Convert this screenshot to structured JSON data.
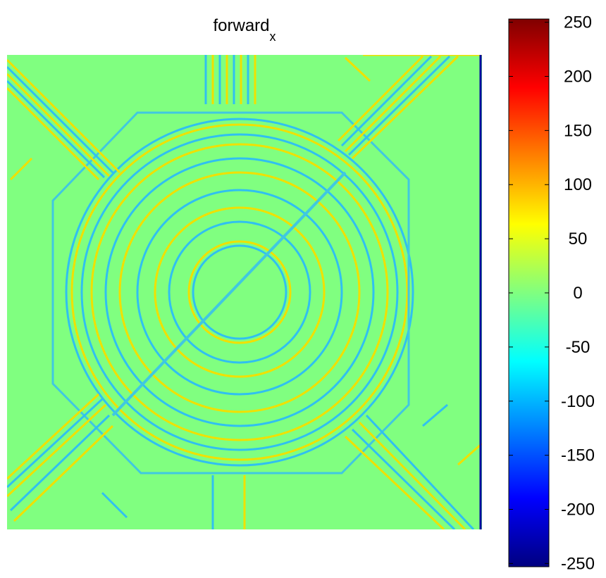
{
  "chart_data": {
    "type": "heatmap",
    "title": "forward",
    "title_subscript": "x",
    "colormap": "jet",
    "clim": [
      -253,
      253
    ],
    "colorbar_ticks": [
      250,
      200,
      150,
      100,
      50,
      0,
      -50,
      -100,
      -150,
      -200,
      -250
    ]
  }
}
